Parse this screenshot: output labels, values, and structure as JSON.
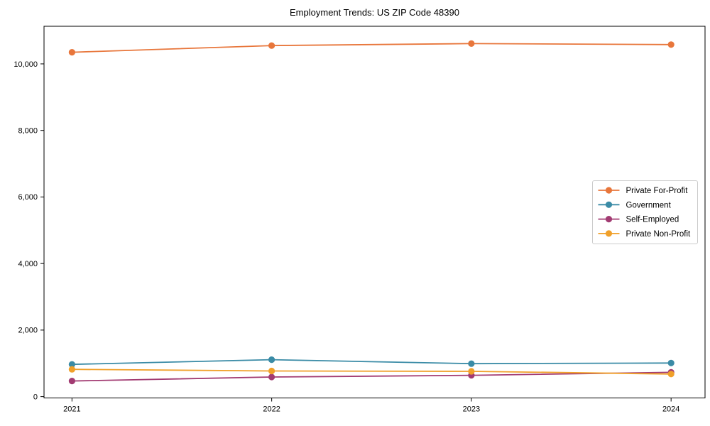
{
  "chart_data": {
    "type": "line",
    "title": "Employment Trends: US ZIP Code 48390",
    "xlabel": "",
    "ylabel": "",
    "x": [
      2021,
      2022,
      2023,
      2024
    ],
    "x_tick_labels": [
      "2021",
      "2022",
      "2023",
      "2024"
    ],
    "y_ticks": [
      0,
      2000,
      4000,
      6000,
      8000,
      10000
    ],
    "y_tick_labels": [
      "0",
      "2,000",
      "4,000",
      "6,000",
      "8,000",
      "10,000"
    ],
    "xlim": [
      2020.86,
      2024.17
    ],
    "ylim": [
      -40,
      11130
    ],
    "grid": false,
    "legend_position": "center right",
    "series": [
      {
        "name": "Private For-Profit",
        "color": "#E8763B",
        "values": [
          10350,
          10550,
          10610,
          10580
        ]
      },
      {
        "name": "Government",
        "color": "#3A8BA6",
        "values": [
          970,
          1110,
          990,
          1010
        ]
      },
      {
        "name": "Self-Employed",
        "color": "#A23B72",
        "values": [
          470,
          590,
          640,
          730
        ]
      },
      {
        "name": "Private Non-Profit",
        "color": "#F0A02A",
        "values": [
          820,
          770,
          760,
          680
        ]
      }
    ],
    "marker": "circle",
    "frame_color": "#000000",
    "legend_border_color": "#cccccc",
    "background_color": "#ffffff"
  }
}
